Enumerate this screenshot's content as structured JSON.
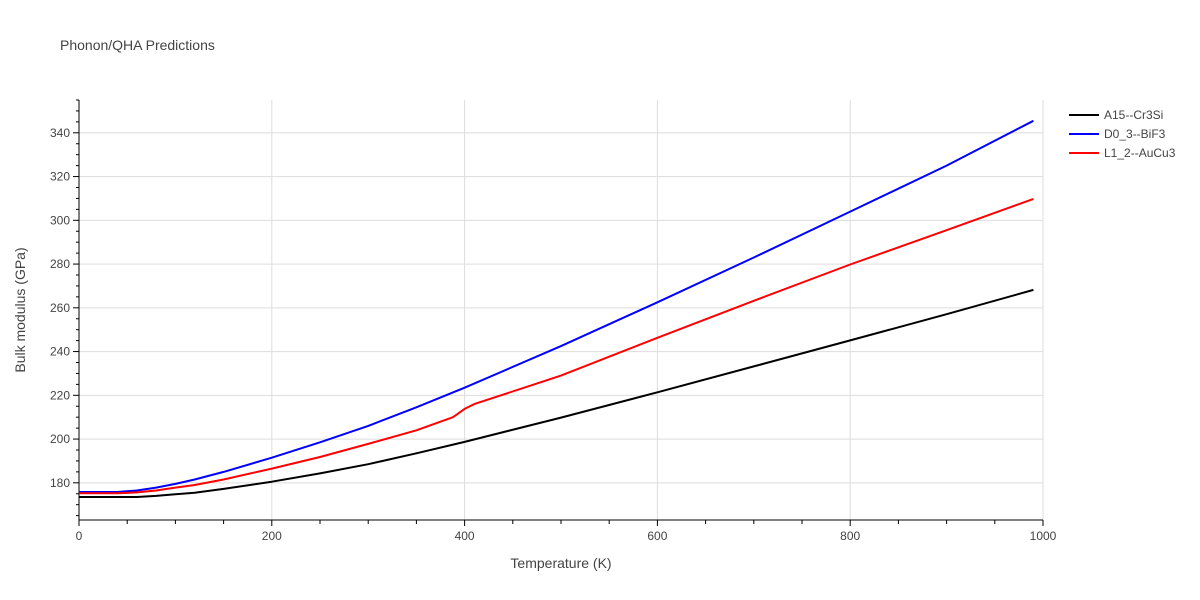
{
  "chart_data": {
    "type": "line",
    "title": "Phonon/QHA Predictions",
    "xlabel": "Temperature (K)",
    "ylabel": "Bulk modulus (GPa)",
    "xlim": [
      0,
      1000
    ],
    "ylim": [
      163,
      355
    ],
    "xticks": [
      0,
      200,
      400,
      600,
      800,
      1000
    ],
    "yticks": [
      180,
      200,
      220,
      240,
      260,
      280,
      300,
      320,
      340
    ],
    "grid": true,
    "legend_position": "top-right",
    "series": [
      {
        "name": "A15--Cr3Si",
        "color": "#000000",
        "x": [
          0,
          20,
          40,
          60,
          80,
          100,
          120,
          150,
          200,
          250,
          300,
          350,
          400,
          500,
          600,
          700,
          800,
          900,
          990
        ],
        "y": [
          173.5,
          173.5,
          173.5,
          173.5,
          174.0,
          174.8,
          175.5,
          177.2,
          180.5,
          184.3,
          188.5,
          193.5,
          198.7,
          209.8,
          221.4,
          233.2,
          245.1,
          257.1,
          268.2
        ]
      },
      {
        "name": "D0_3--BiF3",
        "color": "#0000ff",
        "x": [
          0,
          20,
          40,
          60,
          80,
          100,
          120,
          150,
          200,
          250,
          300,
          350,
          400,
          500,
          600,
          700,
          800,
          900,
          990
        ],
        "y": [
          175.8,
          175.8,
          175.8,
          176.5,
          177.8,
          179.5,
          181.5,
          185.0,
          191.5,
          198.5,
          206.0,
          214.5,
          223.5,
          242.5,
          262.5,
          283.0,
          304.0,
          325.0,
          345.5
        ]
      },
      {
        "name": "L1_2--AuCu3",
        "color": "#ff0000",
        "x": [
          0,
          20,
          40,
          60,
          80,
          100,
          120,
          150,
          200,
          250,
          300,
          350,
          388,
          400,
          410,
          500,
          600,
          700,
          800,
          900,
          990
        ],
        "y": [
          175.2,
          175.2,
          175.2,
          175.6,
          176.5,
          177.8,
          179.0,
          181.5,
          186.5,
          191.8,
          197.8,
          204.0,
          210.0,
          213.8,
          216.0,
          229.0,
          246.3,
          263.2,
          279.8,
          295.5,
          309.8
        ]
      }
    ]
  }
}
